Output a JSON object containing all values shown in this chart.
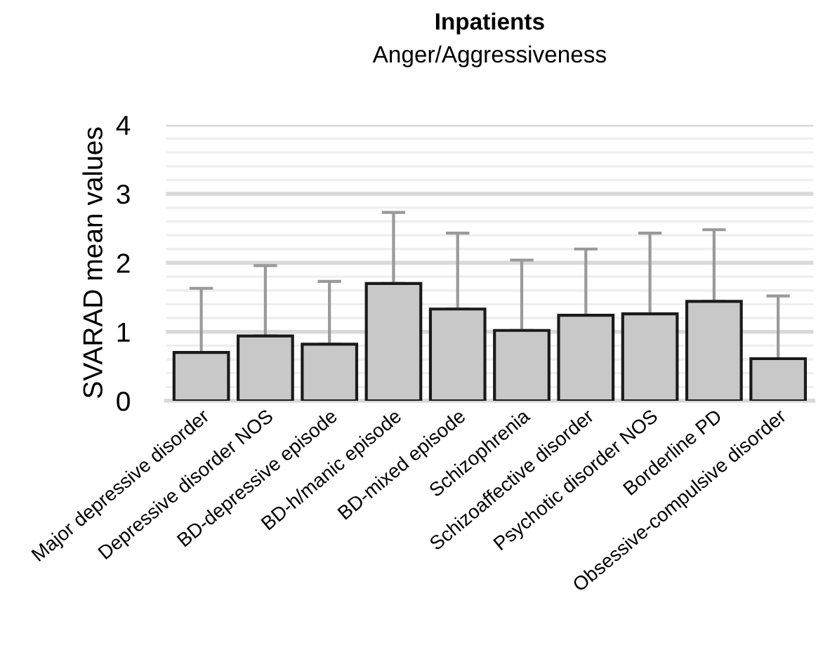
{
  "chart_data": {
    "type": "bar",
    "title": "Inpatients",
    "subtitle": "Anger/Aggressiveness",
    "ylabel": "SVARAD mean values",
    "categories": [
      "Major depressive disorder",
      "Depressive disorder NOS",
      "BD-depressive episode",
      "BD-h/manic episode",
      "BD-mixed episode",
      "Schizophrenia",
      "Schizoaffective disorder",
      "Psychotic disorder NOS",
      "Borderline PD",
      "Obsessive-compulsive disorder"
    ],
    "values": [
      0.7,
      0.94,
      0.82,
      1.7,
      1.33,
      1.02,
      1.24,
      1.26,
      1.44,
      0.61
    ],
    "errors": [
      [
        0.7,
        1.63
      ],
      [
        0.94,
        1.96
      ],
      [
        0.82,
        1.73
      ],
      [
        1.7,
        2.73
      ],
      [
        1.33,
        2.43
      ],
      [
        1.02,
        2.04
      ],
      [
        1.24,
        2.2
      ],
      [
        1.26,
        2.43
      ],
      [
        1.44,
        2.48
      ],
      [
        0.61,
        1.52
      ]
    ],
    "color": "#c8c8c8",
    "ylim": [
      0,
      4
    ],
    "yticks": [
      0,
      {
        "value": 0.2,
        "label": null
      },
      {
        "value": 0.4,
        "label": null
      },
      {
        "value": 0.6,
        "label": null
      },
      {
        "value": 0.8,
        "label": null
      },
      1,
      {
        "value": 1.2,
        "label": null
      },
      {
        "value": 1.4,
        "label": null
      },
      {
        "value": 1.6,
        "label": null
      },
      {
        "value": 1.8,
        "label": null
      },
      2,
      {
        "value": 2.2,
        "label": null
      },
      {
        "value": 2.4,
        "label": null
      },
      {
        "value": 2.6,
        "label": null
      },
      {
        "value": 2.8,
        "label": null
      },
      3,
      {
        "value": 3.2,
        "label": null
      },
      {
        "value": 3.4,
        "label": null
      },
      {
        "value": 3.6,
        "label": null
      },
      {
        "value": 3.8,
        "label": null
      },
      4
    ],
    "grid": "y"
  }
}
